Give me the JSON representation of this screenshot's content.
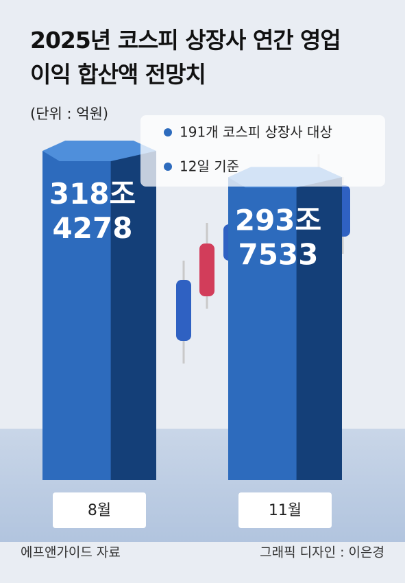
{
  "chart_data": {
    "type": "bar",
    "title": "2025년 코스피 상장사 연간 영업이익 합산액 전망치",
    "subtitle": "(단위 : 억원)",
    "annotations": [
      "191개 코스피 상장사 대상",
      "12일 기준"
    ],
    "categories": [
      "8월",
      "11월"
    ],
    "values": [
      3184278,
      2937533
    ],
    "value_labels": [
      "318조 4278",
      "293조 7533"
    ],
    "color": "#2d6bbd",
    "source": "에프앤가이드 자료",
    "credit": "그래픽 디자인 : 이은경"
  }
}
